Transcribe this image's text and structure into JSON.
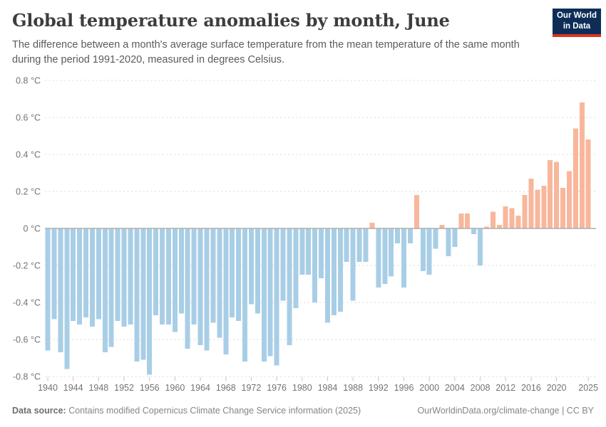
{
  "header": {
    "title": "Global temperature anomalies by month, June",
    "subtitle_line1": "The difference between a month's average surface temperature from the mean temperature of the same month",
    "subtitle_line2": "during the period 1991-2020, measured in degrees Celsius."
  },
  "logo": {
    "line1": "Our World",
    "line2": "in Data",
    "bg_color": "#0d2d57",
    "stripe_color": "#dc3224"
  },
  "chart_data": {
    "type": "bar",
    "title": "Global temperature anomalies by month, June",
    "unit": "°C",
    "ylabel": "",
    "xlabel": "",
    "ylim": [
      -0.8,
      0.8
    ],
    "grid": "horizontal-dashed",
    "colors": {
      "positive": "#f8b79c",
      "negative": "#a8cee6",
      "gridline": "#d9d9d9",
      "zero_line": "#adadad",
      "axis_text": "#737373",
      "tick_mark": "#c6c6c6"
    },
    "years": [
      1940,
      1941,
      1942,
      1943,
      1944,
      1945,
      1946,
      1947,
      1948,
      1949,
      1950,
      1951,
      1952,
      1953,
      1954,
      1955,
      1956,
      1957,
      1958,
      1959,
      1960,
      1961,
      1962,
      1963,
      1964,
      1965,
      1966,
      1967,
      1968,
      1969,
      1970,
      1971,
      1972,
      1973,
      1974,
      1975,
      1976,
      1977,
      1978,
      1979,
      1980,
      1981,
      1982,
      1983,
      1984,
      1985,
      1986,
      1987,
      1988,
      1989,
      1990,
      1991,
      1992,
      1993,
      1994,
      1995,
      1996,
      1997,
      1998,
      1999,
      2000,
      2001,
      2002,
      2003,
      2004,
      2005,
      2006,
      2007,
      2008,
      2009,
      2010,
      2011,
      2012,
      2013,
      2014,
      2015,
      2016,
      2017,
      2018,
      2019,
      2020,
      2021,
      2022,
      2023,
      2024,
      2025
    ],
    "values": [
      -0.66,
      -0.49,
      -0.67,
      -0.76,
      -0.5,
      -0.52,
      -0.48,
      -0.53,
      -0.49,
      -0.67,
      -0.64,
      -0.5,
      -0.53,
      -0.52,
      -0.72,
      -0.71,
      -0.79,
      -0.47,
      -0.52,
      -0.52,
      -0.56,
      -0.46,
      -0.65,
      -0.52,
      -0.63,
      -0.66,
      -0.51,
      -0.59,
      -0.68,
      -0.48,
      -0.5,
      -0.72,
      -0.41,
      -0.46,
      -0.72,
      -0.69,
      -0.74,
      -0.39,
      -0.63,
      -0.43,
      -0.25,
      -0.25,
      -0.4,
      -0.27,
      -0.51,
      -0.47,
      -0.45,
      -0.18,
      -0.39,
      -0.18,
      -0.18,
      0.03,
      -0.32,
      -0.3,
      -0.26,
      -0.08,
      -0.32,
      -0.08,
      0.18,
      -0.23,
      -0.25,
      -0.11,
      0.02,
      -0.15,
      -0.1,
      0.08,
      0.08,
      -0.03,
      -0.2,
      0.01,
      0.09,
      0.02,
      0.12,
      0.11,
      0.07,
      0.18,
      0.27,
      0.21,
      0.23,
      0.37,
      0.36,
      0.22,
      0.31,
      0.54,
      0.68,
      0.48
    ],
    "xticks": [
      1940,
      1944,
      1948,
      1952,
      1956,
      1960,
      1964,
      1968,
      1972,
      1976,
      1980,
      1984,
      1988,
      1992,
      1996,
      2000,
      2004,
      2008,
      2012,
      2016,
      2020,
      2025
    ],
    "yticks": [
      {
        "value": 0.8,
        "label": "0.8 °C"
      },
      {
        "value": 0.6,
        "label": "0.6 °C"
      },
      {
        "value": 0.4,
        "label": "0.4 °C"
      },
      {
        "value": 0.2,
        "label": "0.2 °C"
      },
      {
        "value": 0,
        "label": "0 °C"
      },
      {
        "value": -0.2,
        "label": "-0.2 °C"
      },
      {
        "value": -0.4,
        "label": "-0.4 °C"
      },
      {
        "value": -0.6,
        "label": "-0.6 °C"
      },
      {
        "value": -0.8,
        "label": "-0.8 °C"
      }
    ]
  },
  "footer": {
    "source_label": "Data source:",
    "source_text": " Contains modified Copernicus Climate Change Service information (2025)",
    "credit": "OurWorldinData.org/climate-change | CC BY"
  }
}
